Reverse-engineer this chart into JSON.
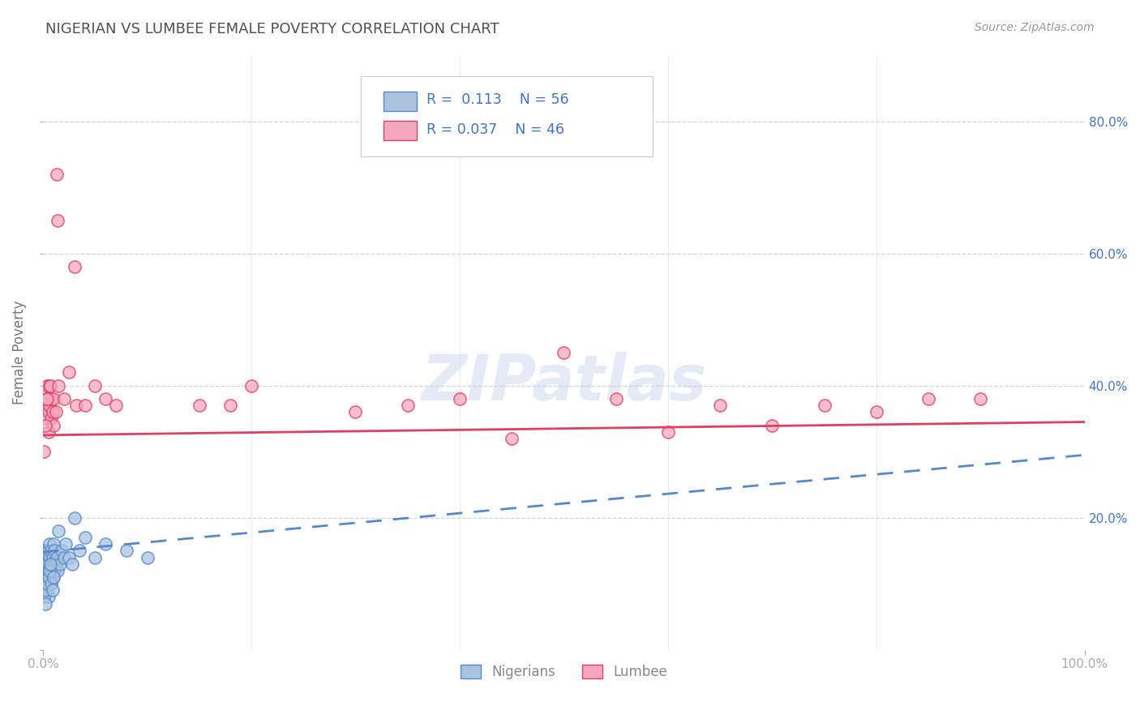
{
  "title": "NIGERIAN VS LUMBEE FEMALE POVERTY CORRELATION CHART",
  "source": "Source: ZipAtlas.com",
  "ylabel": "Female Poverty",
  "nigerian_R": 0.113,
  "nigerian_N": 56,
  "lumbee_R": 0.037,
  "lumbee_N": 46,
  "nigerian_color": "#aac4e0",
  "lumbee_color": "#f4a8c0",
  "nigerian_line_color": "#5588cc",
  "lumbee_line_color": "#e04060",
  "title_color": "#505050",
  "legend_text_color": "#4472c4",
  "grid_color": "#c8d4e8",
  "background_color": "#ffffff",
  "nigerian_x": [
    0.001,
    0.002,
    0.002,
    0.002,
    0.003,
    0.003,
    0.003,
    0.004,
    0.004,
    0.004,
    0.005,
    0.005,
    0.005,
    0.005,
    0.006,
    0.006,
    0.006,
    0.007,
    0.007,
    0.008,
    0.008,
    0.008,
    0.009,
    0.009,
    0.01,
    0.01,
    0.01,
    0.011,
    0.011,
    0.012,
    0.013,
    0.014,
    0.015,
    0.016,
    0.018,
    0.02,
    0.022,
    0.025,
    0.028,
    0.03,
    0.035,
    0.04,
    0.05,
    0.06,
    0.08,
    0.1,
    0.001,
    0.002,
    0.003,
    0.004,
    0.005,
    0.006,
    0.007,
    0.008,
    0.009,
    0.01
  ],
  "nigerian_y": [
    0.13,
    0.11,
    0.15,
    0.1,
    0.12,
    0.09,
    0.14,
    0.11,
    0.13,
    0.12,
    0.1,
    0.15,
    0.12,
    0.08,
    0.14,
    0.11,
    0.16,
    0.13,
    0.12,
    0.1,
    0.15,
    0.13,
    0.12,
    0.14,
    0.11,
    0.13,
    0.16,
    0.12,
    0.15,
    0.13,
    0.14,
    0.12,
    0.18,
    0.13,
    0.15,
    0.14,
    0.16,
    0.14,
    0.13,
    0.2,
    0.15,
    0.17,
    0.14,
    0.16,
    0.15,
    0.14,
    0.08,
    0.07,
    0.09,
    0.1,
    0.11,
    0.12,
    0.13,
    0.1,
    0.09,
    0.11
  ],
  "lumbee_x": [
    0.002,
    0.003,
    0.004,
    0.004,
    0.005,
    0.005,
    0.006,
    0.006,
    0.007,
    0.008,
    0.008,
    0.009,
    0.01,
    0.01,
    0.012,
    0.013,
    0.014,
    0.015,
    0.02,
    0.025,
    0.03,
    0.032,
    0.04,
    0.05,
    0.06,
    0.07,
    0.15,
    0.18,
    0.2,
    0.3,
    0.35,
    0.4,
    0.45,
    0.5,
    0.55,
    0.6,
    0.65,
    0.7,
    0.75,
    0.8,
    0.85,
    0.9,
    0.001,
    0.002,
    0.003,
    0.004
  ],
  "lumbee_y": [
    0.37,
    0.35,
    0.4,
    0.38,
    0.36,
    0.33,
    0.4,
    0.37,
    0.4,
    0.35,
    0.38,
    0.36,
    0.34,
    0.38,
    0.36,
    0.72,
    0.65,
    0.4,
    0.38,
    0.42,
    0.58,
    0.37,
    0.37,
    0.4,
    0.38,
    0.37,
    0.37,
    0.37,
    0.4,
    0.36,
    0.37,
    0.38,
    0.32,
    0.45,
    0.38,
    0.33,
    0.37,
    0.34,
    0.37,
    0.36,
    0.38,
    0.38,
    0.3,
    0.34,
    0.38,
    0.38
  ],
  "xlim": [
    0.0,
    1.0
  ],
  "ylim": [
    0.0,
    0.9
  ],
  "ytick_positions": [
    0.0,
    0.2,
    0.4,
    0.6,
    0.8
  ],
  "ytick_labels_right": [
    "",
    "20.0%",
    "40.0%",
    "60.0%",
    "80.0%"
  ],
  "xtick_positions": [
    0.0,
    1.0
  ],
  "xtick_labels": [
    "0.0%",
    "100.0%"
  ],
  "nig_trend_x0": 0.0,
  "nig_trend_y0": 0.148,
  "nig_trend_x1": 1.0,
  "nig_trend_y1": 0.295,
  "lum_trend_x0": 0.0,
  "lum_trend_y0": 0.325,
  "lum_trend_x1": 1.0,
  "lum_trend_y1": 0.345
}
